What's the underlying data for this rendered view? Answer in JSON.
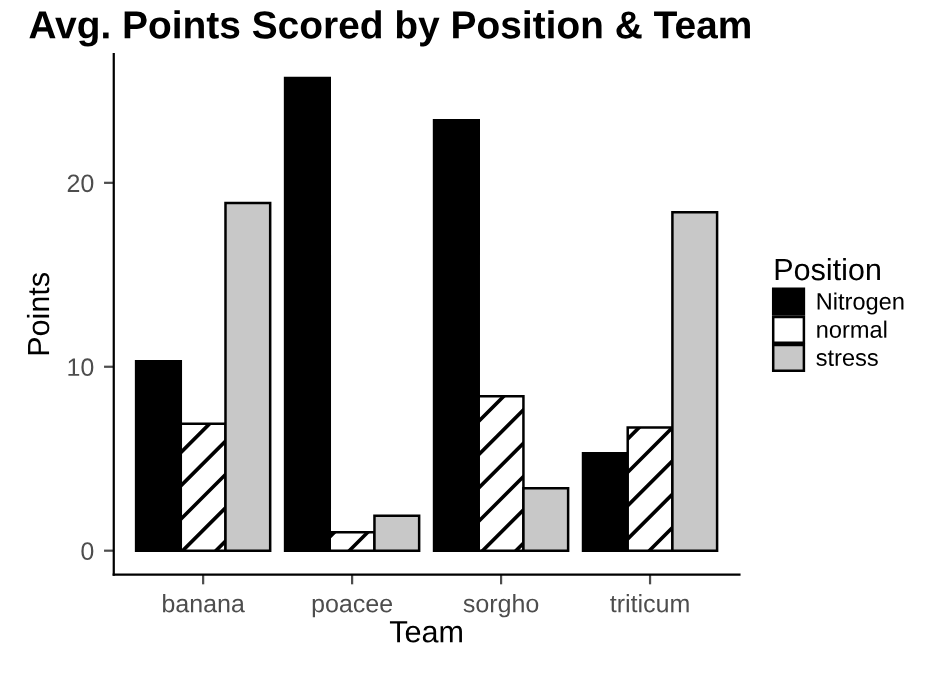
{
  "chart_data": {
    "type": "bar",
    "title": "Avg. Points Scored by Position & Team",
    "xlabel": "Team",
    "ylabel": "Points",
    "legend_title": "Position",
    "categories": [
      "banana",
      "poacee",
      "sorgho",
      "triticum"
    ],
    "series": [
      {
        "name": "Nitrogen",
        "color": "#000000",
        "values": [
          10.3,
          25.7,
          23.4,
          5.3
        ]
      },
      {
        "name": "normal",
        "color": "#ffffff",
        "values": [
          6.9,
          1.0,
          8.4,
          6.7
        ]
      },
      {
        "name": "stress",
        "color": "#c8c8c8",
        "values": [
          18.9,
          1.9,
          3.4,
          18.4
        ]
      }
    ],
    "ylim": [
      -1.3,
      27
    ],
    "yticks": [
      0,
      10,
      20
    ],
    "grid": false,
    "legend": "right"
  }
}
